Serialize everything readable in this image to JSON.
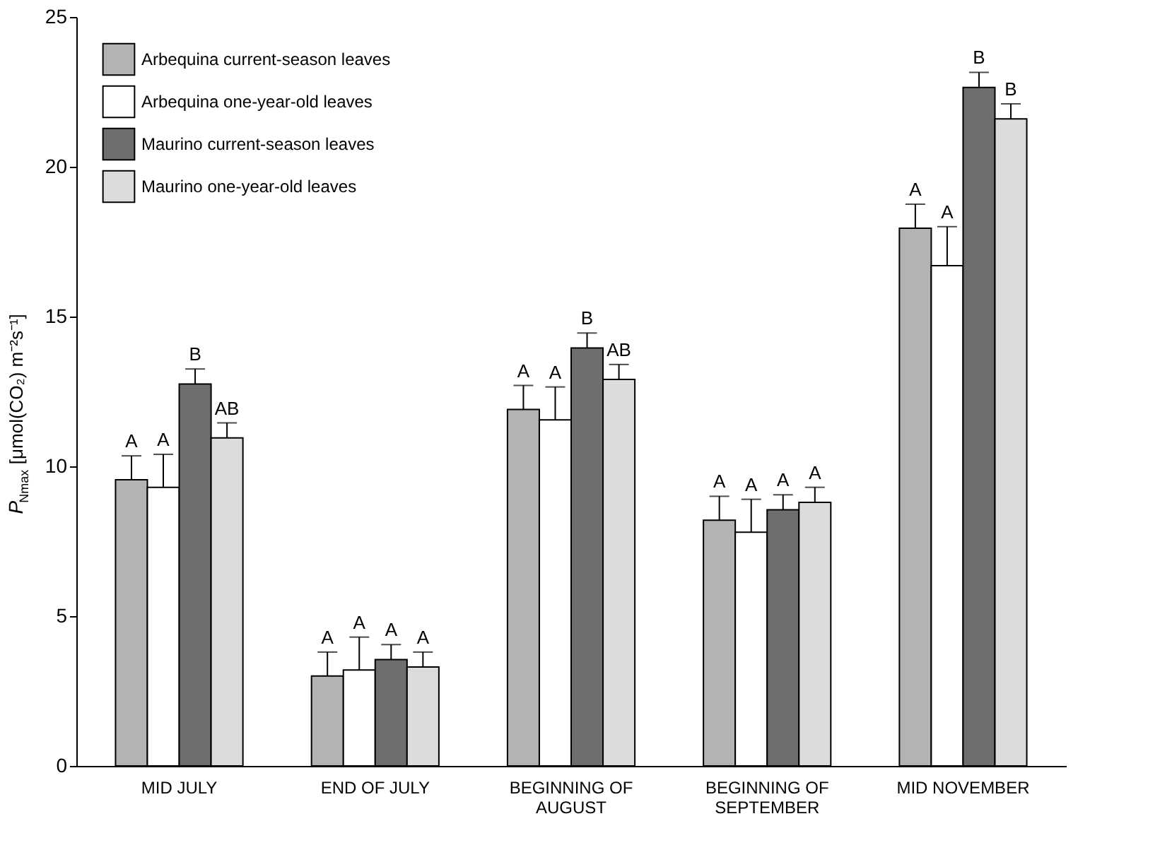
{
  "chart_data": {
    "type": "bar",
    "ylabel": "P$_{Nmax}$ [μmol(CO₂) m⁻²s⁻¹]",
    "categories": [
      "MID JULY",
      "END OF JULY",
      "BEGINNING OF AUGUST",
      "BEGINNING OF SEPTEMBER",
      "MID NOVEMBER"
    ],
    "series": [
      {
        "name": "Arbequina current-season leaves",
        "color": "#b3b3b3",
        "values": [
          9.55,
          3.0,
          11.9,
          8.2,
          17.95
        ],
        "errors": [
          0.8,
          0.8,
          0.8,
          0.8,
          0.8
        ],
        "value_labels": [
          "A",
          "A",
          "A",
          "A",
          "A"
        ]
      },
      {
        "name": "Arbequina one-year-old leaves",
        "color": "#ffffff",
        "values": [
          9.3,
          3.2,
          11.55,
          7.8,
          16.7
        ],
        "errors": [
          1.1,
          1.1,
          1.1,
          1.1,
          1.3
        ],
        "value_labels": [
          "A",
          "A",
          "A",
          "A",
          "A"
        ]
      },
      {
        "name": "Maurino current-season leaves",
        "color": "#6e6e6e",
        "values": [
          12.75,
          3.55,
          13.95,
          8.55,
          22.65
        ],
        "errors": [
          0.5,
          0.5,
          0.5,
          0.5,
          0.5
        ],
        "value_labels": [
          "B",
          "A",
          "B",
          "A",
          "B"
        ]
      },
      {
        "name": "Maurino one-year-old leaves",
        "color": "#dcdcdc",
        "values": [
          10.95,
          3.3,
          12.9,
          8.8,
          21.6
        ],
        "errors": [
          0.5,
          0.5,
          0.5,
          0.5,
          0.5
        ],
        "value_labels": [
          "AB",
          "A",
          "AB",
          "A",
          "B"
        ]
      }
    ],
    "ylim": [
      0,
      25
    ],
    "yticks": [
      0,
      5,
      10,
      15,
      20,
      25
    ],
    "legend": "top left",
    "grid": false
  }
}
